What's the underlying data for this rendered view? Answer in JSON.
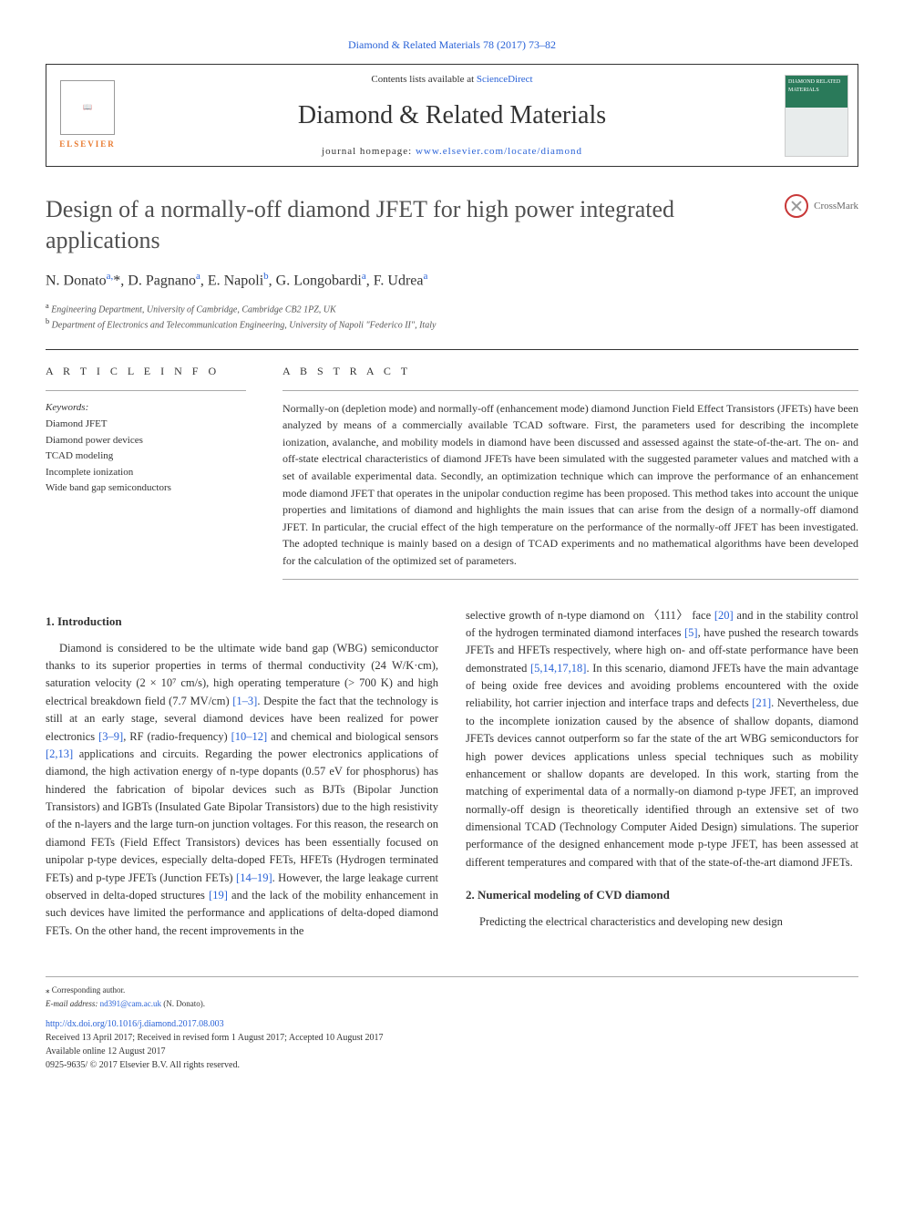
{
  "journal_top_link": "Diamond & Related Materials 78 (2017) 73–82",
  "header": {
    "contents_prefix": "Contents lists available at ",
    "contents_link": "ScienceDirect",
    "journal_name": "Diamond & Related Materials",
    "homepage_prefix": "journal homepage: ",
    "homepage_url": "www.elsevier.com/locate/diamond",
    "publisher": "ELSEVIER",
    "cover_text": "DIAMOND RELATED MATERIALS"
  },
  "crossmark_label": "CrossMark",
  "title": "Design of a normally-off diamond JFET for high power integrated applications",
  "authors_html": "N. Donato<sup>a,</sup>*, D. Pagnano<sup>a</sup>, E. Napoli<sup>b</sup>, G. Longobardi<sup>a</sup>, F. Udrea<sup>a</sup>",
  "affiliations": [
    {
      "sup": "a",
      "text": "Engineering Department, University of Cambridge, Cambridge CB2 1PZ, UK"
    },
    {
      "sup": "b",
      "text": "Department of Electronics and Telecommunication Engineering, University of Napoli \"Federico II\", Italy"
    }
  ],
  "info_heading": "A R T I C L E  I N F O",
  "abstract_heading": "A B S T R A C T",
  "keywords_label": "Keywords:",
  "keywords": [
    "Diamond JFET",
    "Diamond power devices",
    "TCAD modeling",
    "Incomplete ionization",
    "Wide band gap semiconductors"
  ],
  "abstract_text": "Normally-on (depletion mode) and normally-off (enhancement mode) diamond Junction Field Effect Transistors (JFETs) have been analyzed by means of a commercially available TCAD software. First, the parameters used for describing the incomplete ionization, avalanche, and mobility models in diamond have been discussed and assessed against the state-of-the-art. The on- and off-state electrical characteristics of diamond JFETs have been simulated with the suggested parameter values and matched with a set of available experimental data. Secondly, an optimization technique which can improve the performance of an enhancement mode diamond JFET that operates in the unipolar conduction regime has been proposed. This method takes into account the unique properties and limitations of diamond and highlights the main issues that can arise from the design of a normally-off diamond JFET. In particular, the crucial effect of the high temperature on the performance of the normally-off JFET has been investigated. The adopted technique is mainly based on a design of TCAD experiments and no mathematical algorithms have been developed for the calculation of the optimized set of parameters.",
  "sections": {
    "s1_heading": "1. Introduction",
    "s1_col1_p1_a": "Diamond is considered to be the ultimate wide band gap (WBG) semiconductor thanks to its superior properties in terms of thermal conductivity (24 W/K·cm), saturation velocity (2 × 10⁷ cm/s), high operating temperature (> 700 K) and high electrical breakdown field (7.7 MV/cm) ",
    "s1_ref1": "[1–3]",
    "s1_col1_p1_b": ". Despite the fact that the technology is still at an early stage, several diamond devices have been realized for power electronics ",
    "s1_ref2": "[3–9]",
    "s1_col1_p1_c": ", RF (radio-frequency) ",
    "s1_ref3": "[10–12]",
    "s1_col1_p1_d": " and chemical and biological sensors ",
    "s1_ref4": "[2,13]",
    "s1_col1_p1_e": " applications and circuits. Regarding the power electronics applications of diamond, the high activation energy of n-type dopants (0.57 eV for phosphorus) has hindered the fabrication of bipolar devices such as BJTs (Bipolar Junction Transistors) and IGBTs (Insulated Gate Bipolar Transistors) due to the high resistivity of the n-layers and the large turn-on junction voltages. For this reason, the research on diamond FETs (Field Effect Transistors) devices has been essentially focused on unipolar p-type devices, especially delta-doped FETs, HFETs (Hydrogen terminated FETs) and p-type JFETs (Junction FETs) ",
    "s1_ref5": "[14–19]",
    "s1_col1_p1_f": ". However, the large leakage current observed in delta-doped structures ",
    "s1_ref6": "[19]",
    "s1_col1_p1_g": " and the lack of the mobility enhancement in such devices have limited the performance and applications of delta-doped diamond FETs. On the other hand, the recent improvements in the ",
    "s1_col2_p1_a": "selective growth of n-type diamond on 〈111〉 face ",
    "s1_ref7": "[20]",
    "s1_col2_p1_b": " and in the stability control of the hydrogen terminated diamond interfaces ",
    "s1_ref8": "[5]",
    "s1_col2_p1_c": ", have pushed the research towards JFETs and HFETs respectively, where high on- and off-state performance have been demonstrated ",
    "s1_ref9": "[5,14,17,18]",
    "s1_col2_p1_d": ". In this scenario, diamond JFETs have the main advantage of being oxide free devices and avoiding problems encountered with the oxide reliability, hot carrier injection and interface traps and defects ",
    "s1_ref10": "[21]",
    "s1_col2_p1_e": ". Nevertheless, due to the incomplete ionization caused by the absence of shallow dopants, diamond JFETs devices cannot outperform so far the state of the art WBG semiconductors for high power devices applications unless special techniques such as mobility enhancement or shallow dopants are developed. In this work, starting from the matching of experimental data of a normally-on diamond p-type JFET, an improved normally-off design is theoretically identified through an extensive set of two dimensional TCAD (Technology Computer Aided Design) simulations. The superior performance of the designed enhancement mode p-type JFET, has been assessed at different temperatures and compared with that of the state-of-the-art diamond JFETs.",
    "s2_heading": "2. Numerical modeling of CVD diamond",
    "s2_col2_p1": "Predicting the electrical characteristics and developing new design"
  },
  "footer": {
    "corr_label": "⁎ Corresponding author.",
    "email_label": "E-mail address: ",
    "email": "nd391@cam.ac.uk",
    "email_suffix": " (N. Donato).",
    "doi": "http://dx.doi.org/10.1016/j.diamond.2017.08.003",
    "received": "Received 13 April 2017; Received in revised form 1 August 2017; Accepted 10 August 2017",
    "available": "Available online 12 August 2017",
    "copyright": "0925-9635/ © 2017 Elsevier B.V. All rights reserved."
  },
  "colors": {
    "link": "#2962d7",
    "elsevier_orange": "#e8792e",
    "crossmark_red": "#c83737",
    "cover_green": "#2a7a5a"
  }
}
